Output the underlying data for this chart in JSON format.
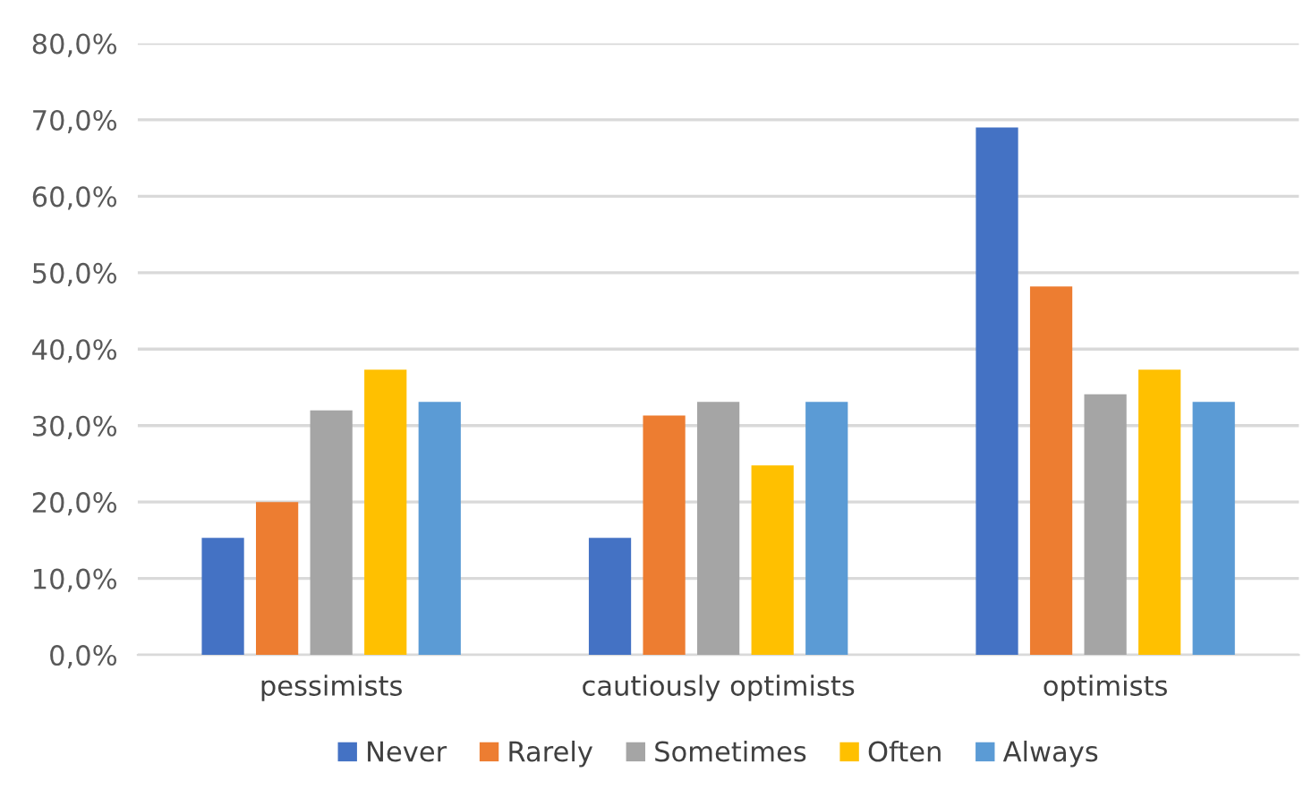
{
  "chart_data": {
    "type": "bar",
    "categories": [
      "pessimists",
      "cautiously optimists",
      "optimists"
    ],
    "series": [
      {
        "name": "Never",
        "color": "#4472c4",
        "values": [
          15.3,
          15.3,
          69.0
        ]
      },
      {
        "name": "Rarely",
        "color": "#ed7d31",
        "values": [
          20.0,
          31.3,
          48.2
        ]
      },
      {
        "name": "Sometimes",
        "color": "#a5a5a5",
        "values": [
          32.0,
          33.1,
          34.1
        ]
      },
      {
        "name": "Often",
        "color": "#ffc000",
        "values": [
          37.3,
          24.8,
          37.3
        ]
      },
      {
        "name": "Always",
        "color": "#5b9bd5",
        "values": [
          33.1,
          33.1,
          33.1
        ]
      }
    ],
    "ylim": [
      0,
      80
    ],
    "yticks": [
      {
        "value": 0,
        "label": "0,0%"
      },
      {
        "value": 10,
        "label": "10,0%"
      },
      {
        "value": 20,
        "label": "20,0%"
      },
      {
        "value": 30,
        "label": "30,0%"
      },
      {
        "value": 40,
        "label": "40,0%"
      },
      {
        "value": 50,
        "label": "50,0%"
      },
      {
        "value": 60,
        "label": "60,0%"
      },
      {
        "value": 70,
        "label": "70,0%"
      },
      {
        "value": 80,
        "label": "80,0%"
      }
    ],
    "grid": "y",
    "legend": "bottom"
  }
}
